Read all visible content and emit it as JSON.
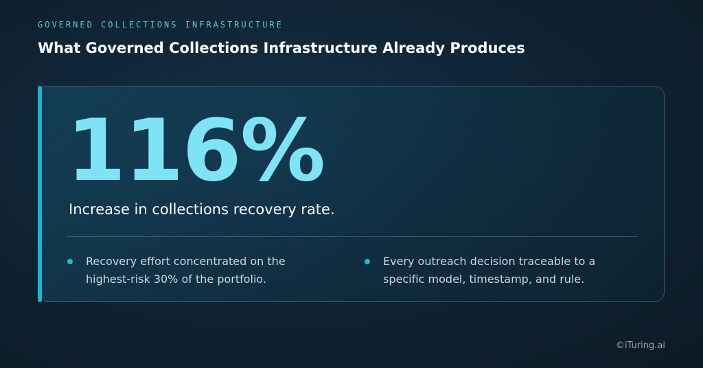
{
  "header": {
    "eyebrow": "GOVERNED COLLECTIONS INFRASTRUCTURE",
    "title": "What Governed Collections Infrastructure Already Produces"
  },
  "stat": {
    "value": "116%",
    "caption": "Increase in collections recovery rate."
  },
  "bullets": [
    "Recovery effort concentrated on the highest-risk 30% of the portfolio.",
    "Every outreach decision traceable to a specific model, timestamp, and rule."
  ],
  "footer": "©iTuring.ai"
}
